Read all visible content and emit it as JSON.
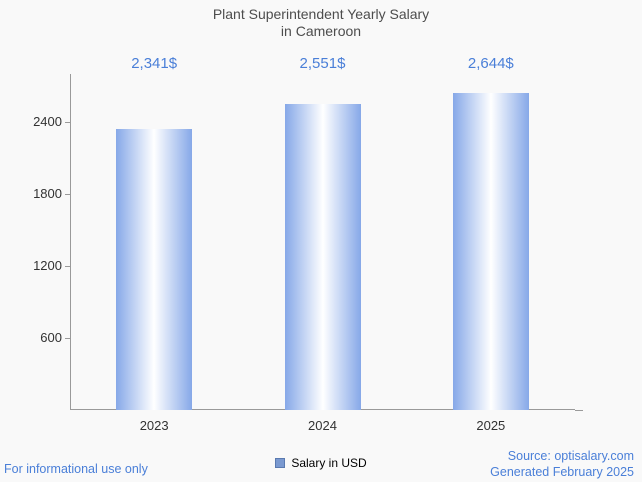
{
  "chart_data": {
    "type": "bar",
    "title": "Plant Superintendent Yearly Salary in Cameroon",
    "title_lines": [
      "Plant Superintendent Yearly Salary",
      "in Cameroon"
    ],
    "categories": [
      "2023",
      "2024",
      "2025"
    ],
    "values": [
      2341,
      2551,
      2644
    ],
    "value_labels": [
      "2,341$",
      "2,551$",
      "2,644$"
    ],
    "series": [
      {
        "name": "Salary in USD",
        "values": [
          2341,
          2551,
          2644
        ]
      }
    ],
    "xlabel": "",
    "ylabel": "",
    "ylim": [
      0,
      2800
    ],
    "yticks": [
      600,
      1200,
      1800,
      2400
    ],
    "grid": false,
    "legend_position": "bottom-center",
    "legend": {
      "label": "Salary in USD",
      "swatch_color": "#7a99d0"
    },
    "bar_edge_color": "#86a8e8",
    "bar_center_color": "#ffffff",
    "value_label_color": "#4a7fd8"
  },
  "footer": {
    "left_note": "For informational use only",
    "source": "Source: optisalary.com",
    "generated": "Generated February 2025"
  }
}
